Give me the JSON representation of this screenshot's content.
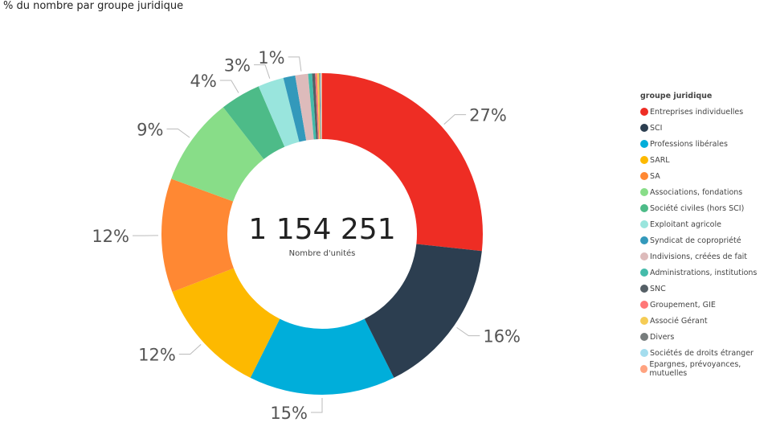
{
  "chart_data": {
    "type": "pie",
    "title": "% du nombre par groupe juridique",
    "center_value": "1 154 251",
    "center_label": "Nombre d'unités",
    "legend_title": "groupe juridique",
    "legend_placement": "right",
    "categories": [
      "Entreprises individuelles",
      "SCI",
      "Professions libérales",
      "SARL",
      "SA",
      "Associations, fondations",
      "Société civiles (hors SCI)",
      "Exploitant agricole",
      "Syndicat de copropriété",
      "Indivisions, créées de fait",
      "Administrations, institutions",
      "SNC",
      "Groupement, GIE",
      "Associé Gérant",
      "Divers",
      "Sociétés de droits étranger",
      "Epargnes, prévoyances, mutuelles"
    ],
    "values": [
      26.8,
      16.0,
      14.8,
      11.8,
      11.5,
      8.9,
      4.1,
      2.6,
      1.2,
      1.3,
      0.4,
      0.3,
      0.2,
      0.2,
      0.1,
      0.1,
      0.1
    ],
    "labels": [
      "27%",
      "16%",
      "15%",
      "12%",
      "12%",
      "9%",
      "4%",
      "3%",
      "",
      "1%",
      "",
      "",
      "",
      "",
      "",
      "",
      ""
    ],
    "colors": [
      "#EE2D24",
      "#2C3E50",
      "#00AEDA",
      "#FDB900",
      "#FF8833",
      "#88DD88",
      "#4DBB88",
      "#99E5DD",
      "#3399BB",
      "#DDBBBB",
      "#44BBAA",
      "#555F66",
      "#FF7777",
      "#F5CC55",
      "#777D7D",
      "#A4DDEE",
      "#FFA380"
    ]
  }
}
